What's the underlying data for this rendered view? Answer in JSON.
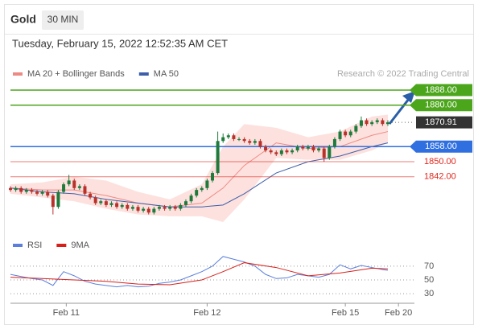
{
  "chart_data": [
    {
      "type": "candlestick",
      "title": "Gold",
      "timeframe": "30 MIN",
      "subtitle": "Tuesday, February 15, 2022 12:52:35 AM CET",
      "credit": "Research © 2022 Trading Central",
      "xlim": [
        0,
        76
      ],
      "ylim": [
        1812,
        1894
      ],
      "up_color": "#1f7a3c",
      "down_color": "#b8322a",
      "open": [
        1836,
        1835,
        1836,
        1834,
        1835,
        1834,
        1833,
        1834,
        1832,
        1826,
        1834,
        1838,
        1840,
        1836,
        1837,
        1833,
        1831,
        1828,
        1829,
        1827,
        1828,
        1826,
        1827,
        1825,
        1826,
        1824,
        1825,
        1823,
        1825,
        1826,
        1825,
        1826,
        1825,
        1827,
        1829,
        1832,
        1835,
        1836,
        1840,
        1844,
        1861,
        1863,
        1864,
        1862,
        1862,
        1861,
        1860,
        1861,
        1858,
        1856,
        1855,
        1854,
        1856,
        1855,
        1856,
        1858,
        1857,
        1858,
        1856,
        1857,
        1852,
        1858,
        1862,
        1866,
        1864,
        1866,
        1869,
        1872,
        1870,
        1871,
        1872,
        1870
      ],
      "high": [
        1837,
        1837,
        1837,
        1836,
        1836,
        1835,
        1835,
        1835,
        1833,
        1835,
        1839,
        1843,
        1841,
        1838,
        1838,
        1834,
        1832,
        1830,
        1830,
        1829,
        1829,
        1828,
        1828,
        1827,
        1827,
        1826,
        1826,
        1826,
        1827,
        1827,
        1827,
        1827,
        1828,
        1830,
        1833,
        1836,
        1837,
        1841,
        1845,
        1866,
        1865,
        1865,
        1865,
        1863,
        1863,
        1862,
        1862,
        1862,
        1859,
        1857,
        1856,
        1857,
        1857,
        1857,
        1859,
        1859,
        1859,
        1859,
        1858,
        1858,
        1859,
        1863,
        1867,
        1867,
        1867,
        1870,
        1874,
        1873,
        1872,
        1873,
        1873,
        1872
      ],
      "low": [
        1834,
        1834,
        1833,
        1833,
        1833,
        1832,
        1832,
        1831,
        1822,
        1825,
        1833,
        1837,
        1835,
        1835,
        1832,
        1830,
        1827,
        1827,
        1826,
        1826,
        1825,
        1825,
        1824,
        1824,
        1823,
        1823,
        1822,
        1822,
        1824,
        1824,
        1824,
        1824,
        1824,
        1826,
        1828,
        1831,
        1834,
        1835,
        1839,
        1843,
        1860,
        1862,
        1861,
        1861,
        1860,
        1859,
        1859,
        1857,
        1855,
        1854,
        1853,
        1853,
        1854,
        1854,
        1855,
        1856,
        1856,
        1855,
        1855,
        1850,
        1851,
        1857,
        1861,
        1863,
        1863,
        1865,
        1868,
        1869,
        1869,
        1870,
        1869,
        1869
      ],
      "close": [
        1835,
        1836,
        1834,
        1835,
        1834,
        1833,
        1834,
        1832,
        1826,
        1834,
        1838,
        1840,
        1836,
        1837,
        1833,
        1831,
        1828,
        1829,
        1827,
        1828,
        1826,
        1827,
        1825,
        1826,
        1824,
        1825,
        1823,
        1825,
        1826,
        1825,
        1826,
        1825,
        1827,
        1829,
        1832,
        1835,
        1836,
        1840,
        1844,
        1861,
        1863,
        1864,
        1862,
        1862,
        1861,
        1860,
        1861,
        1858,
        1856,
        1855,
        1854,
        1856,
        1855,
        1856,
        1858,
        1857,
        1858,
        1856,
        1857,
        1852,
        1858,
        1862,
        1866,
        1864,
        1866,
        1869,
        1872,
        1870,
        1871,
        1872,
        1870,
        1870.91
      ],
      "series": [
        {
          "name": "MA 20 + Bollinger Bands",
          "color": "#ee8a84",
          "fill": "#fde1de",
          "x": [
            0,
            6,
            12,
            18,
            24,
            30,
            36,
            40,
            44,
            50,
            56,
            62,
            68,
            71
          ],
          "values": [
            1836,
            1835,
            1835,
            1832,
            1828,
            1826,
            1828,
            1836,
            1848,
            1860,
            1857,
            1858,
            1864,
            1866
          ],
          "upper": [
            1838,
            1839,
            1842,
            1840,
            1834,
            1830,
            1838,
            1858,
            1870,
            1868,
            1863,
            1866,
            1874,
            1875
          ],
          "lower": [
            1833,
            1831,
            1829,
            1825,
            1822,
            1821,
            1821,
            1818,
            1830,
            1852,
            1851,
            1851,
            1856,
            1860
          ]
        },
        {
          "name": "MA 50",
          "color": "#3d5fa8",
          "x": [
            0,
            6,
            12,
            18,
            24,
            30,
            36,
            40,
            44,
            50,
            56,
            62,
            68,
            71
          ],
          "values": [
            1836,
            1834,
            1833,
            1830,
            1828,
            1826,
            1826,
            1827,
            1833,
            1844,
            1850,
            1853,
            1858,
            1860
          ]
        }
      ],
      "levels": [
        {
          "value": 1888,
          "label": "1888.00",
          "color": "#4ca61c",
          "tag": true,
          "style": "solid"
        },
        {
          "value": 1880,
          "label": "1880.00",
          "color": "#4ca61c",
          "tag": true,
          "style": "solid"
        },
        {
          "value": 1870.91,
          "label": "1870.91",
          "color": "#333333",
          "tag": true,
          "style": "dotted"
        },
        {
          "value": 1858,
          "label": "1858.00",
          "color": "#2f6fe0",
          "tag": true,
          "style": "solid"
        },
        {
          "value": 1850,
          "label": "1850.00",
          "color": "#e0251b",
          "tag": false,
          "style": "solid"
        },
        {
          "value": 1842,
          "label": "1842.00",
          "color": "#e0251b",
          "tag": false,
          "style": "solid"
        }
      ]
    },
    {
      "type": "line",
      "xlim": [
        0,
        76
      ],
      "ylim": [
        22,
        85
      ],
      "yticks": [
        70,
        50,
        30
      ],
      "xticks": [
        {
          "value": 10.5,
          "label": "Feb 11"
        },
        {
          "value": 37,
          "label": "Feb 12"
        },
        {
          "value": 63,
          "label": "Feb 15"
        },
        {
          "value": 73,
          "label": "Feb 20"
        }
      ],
      "series": [
        {
          "name": "RSI",
          "color": "#5b7fdb",
          "x": [
            0,
            2,
            4,
            6,
            8,
            10,
            12,
            14,
            16,
            18,
            20,
            22,
            24,
            26,
            28,
            30,
            32,
            34,
            36,
            38,
            40,
            42,
            44,
            46,
            48,
            50,
            52,
            54,
            56,
            58,
            60,
            62,
            64,
            66,
            68,
            70,
            71
          ],
          "values": [
            58,
            55,
            52,
            50,
            42,
            62,
            56,
            48,
            44,
            42,
            40,
            42,
            40,
            41,
            45,
            47,
            50,
            56,
            62,
            70,
            84,
            80,
            76,
            70,
            58,
            52,
            53,
            58,
            56,
            54,
            58,
            72,
            66,
            71,
            68,
            65,
            64
          ]
        },
        {
          "name": "9MA",
          "color": "#d8201a",
          "x": [
            0,
            6,
            12,
            18,
            24,
            30,
            36,
            40,
            44,
            50,
            56,
            62,
            68,
            71
          ],
          "values": [
            54,
            52,
            50,
            48,
            44,
            43,
            50,
            62,
            75,
            68,
            56,
            60,
            67,
            66
          ]
        }
      ]
    }
  ]
}
